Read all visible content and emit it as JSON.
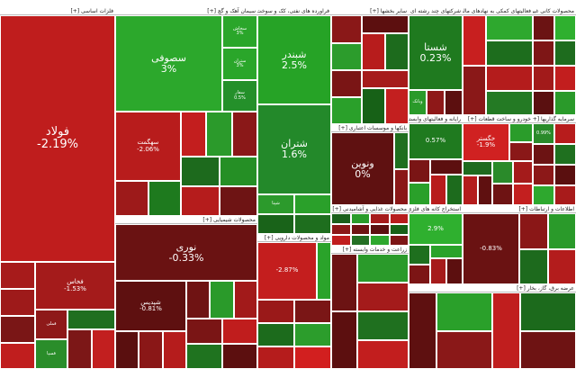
{
  "palette": {
    "strong_up": "#2ea82e",
    "up": "#259a25",
    "mild_up": "#1f7a1f",
    "dark_up": "#155c15",
    "neutral": "#6d1515",
    "mild_down": "#8b1a1a",
    "down": "#b01c1c",
    "strong_down": "#d02020"
  },
  "sectors": [
    {
      "title": "فلزات اساسی [+]",
      "tiles": [
        {
          "symbol": "فولاد",
          "change": "-2.19%",
          "color": "#bf1d1d",
          "big": 3
        },
        {
          "symbol": "",
          "change": "",
          "color": "#a71b1b"
        },
        {
          "symbol": "",
          "change": "",
          "color": "#9e1a1a"
        },
        {
          "symbol": "",
          "change": "",
          "color": "#7a1616"
        },
        {
          "symbol": "",
          "change": "",
          "color": "#c01e1e"
        },
        {
          "symbol": "فخاس",
          "change": "-1.53%",
          "color": "#a41b1b",
          "big": 1
        },
        {
          "symbol": "فملی",
          "change": "",
          "color": "#8e1919"
        },
        {
          "symbol": "فسپا",
          "change": "",
          "color": "#2a8d2a"
        },
        {
          "symbol": "",
          "change": "",
          "color": "#1f6f1f"
        },
        {
          "symbol": "",
          "change": "",
          "color": "#7c1717"
        },
        {
          "symbol": "",
          "change": "",
          "color": "#c21f1f"
        }
      ]
    },
    {
      "title": "سیمان آهک و گچ [+]",
      "tiles": [
        {
          "symbol": "سصوفی",
          "change": "3%",
          "color": "#2ca82c",
          "big": 2
        },
        {
          "symbol": "سخاش",
          "change": "3%",
          "color": "#2aa62a"
        },
        {
          "symbol": "ستران",
          "change": "3%",
          "color": "#2aa62a"
        },
        {
          "symbol": "سفار",
          "change": "0.5%",
          "color": "#24902a"
        },
        {
          "symbol": "سهگمت",
          "change": "-2.06%",
          "color": "#b81c1c",
          "big": 1
        },
        {
          "symbol": "",
          "change": "",
          "color": "#9d1a1a"
        },
        {
          "symbol": "",
          "change": "",
          "color": "#1e7a1e"
        },
        {
          "symbol": "",
          "change": "",
          "color": "#c31e1e"
        },
        {
          "symbol": "",
          "change": "",
          "color": "#2b9a2b"
        },
        {
          "symbol": "",
          "change": "",
          "color": "#8a1818"
        },
        {
          "symbol": "",
          "change": "",
          "color": "#1d6a1d"
        },
        {
          "symbol": "",
          "change": "",
          "color": "#b51c1c"
        },
        {
          "symbol": "",
          "change": "",
          "color": "#258f25"
        },
        {
          "symbol": "",
          "change": "",
          "color": "#6e1414"
        }
      ]
    },
    {
      "title": "فراورده های نفتی، کک و سوخت هسته ای [+]",
      "tiles": [
        {
          "symbol": "شبندر",
          "change": "2.5%",
          "color": "#26a326",
          "big": 2
        },
        {
          "symbol": "شتران",
          "change": "1.6%",
          "color": "#23892a",
          "big": 2
        },
        {
          "symbol": "شپنا",
          "change": "",
          "color": "#2c9a2c"
        },
        {
          "symbol": "",
          "change": "",
          "color": "#196319"
        },
        {
          "symbol": "",
          "change": "",
          "color": "#2aa02a"
        },
        {
          "symbol": "",
          "change": "",
          "color": "#1e6e1e"
        }
      ]
    },
    {
      "title": "محصولات شیمیایی [+]",
      "tiles": [
        {
          "symbol": "نوری",
          "change": "-0.33%",
          "color": "#6a1212",
          "big": 2
        },
        {
          "symbol": "شپدیس",
          "change": "-0.81%",
          "color": "#5e1010",
          "big": 1
        },
        {
          "symbol": "",
          "change": "",
          "color": "#5a0f0f"
        },
        {
          "symbol": "",
          "change": "",
          "color": "#8a1717"
        },
        {
          "symbol": "",
          "change": "",
          "color": "#b51c1c"
        },
        {
          "symbol": "",
          "change": "",
          "color": "#6f1313"
        },
        {
          "symbol": "",
          "change": "",
          "color": "#2a9a2a"
        },
        {
          "symbol": "",
          "change": "",
          "color": "#a21a1a"
        },
        {
          "symbol": "",
          "change": "",
          "color": "#7a1515"
        },
        {
          "symbol": "",
          "change": "",
          "color": "#1f731f"
        },
        {
          "symbol": "",
          "change": "",
          "color": "#c01d1d"
        },
        {
          "symbol": "",
          "change": "",
          "color": "#5c0f0f"
        }
      ]
    },
    {
      "title": "مواد و محصولات دارویی [+]",
      "tiles": [
        {
          "symbol": "",
          "change": "-2.87%",
          "color": "#c41e1e",
          "big": 1
        },
        {
          "symbol": "",
          "change": "",
          "color": "#2aa32a"
        },
        {
          "symbol": "",
          "change": "",
          "color": "#9a1919"
        },
        {
          "symbol": "",
          "change": "",
          "color": "#1c6b1c"
        },
        {
          "symbol": "",
          "change": "",
          "color": "#b51c1c"
        },
        {
          "symbol": "",
          "change": "",
          "color": "#7a1616"
        },
        {
          "symbol": "",
          "change": "",
          "color": "#2c9d2c"
        },
        {
          "symbol": "",
          "change": "",
          "color": "#d21f1f"
        }
      ]
    },
    {
      "title": "محصولات کانی غیرفلزی [+]",
      "tiles": [
        {
          "symbol": "",
          "change": "",
          "color": "#6b1313"
        },
        {
          "symbol": "",
          "change": "",
          "color": "#2fb02f"
        },
        {
          "symbol": "",
          "change": "",
          "color": "#7e1616"
        },
        {
          "symbol": "",
          "change": "",
          "color": "#1e6c1e"
        },
        {
          "symbol": "",
          "change": "",
          "color": "#a21a1a"
        },
        {
          "symbol": "",
          "change": "",
          "color": "#c21e1e"
        },
        {
          "symbol": "",
          "change": "",
          "color": "#5a1010"
        },
        {
          "symbol": "",
          "change": "",
          "color": "#2a9a2a"
        }
      ]
    },
    {
      "title": "فعالیتهای کمکی به نهادهای مالی واسط [+]",
      "tiles": [
        {
          "symbol": "",
          "change": "",
          "color": "#c81f1f"
        },
        {
          "symbol": "",
          "change": "",
          "color": "#2ea82e"
        },
        {
          "symbol": "",
          "change": "",
          "color": "#1d6d1d"
        },
        {
          "symbol": "",
          "change": "",
          "color": "#8a1818"
        },
        {
          "symbol": "",
          "change": "",
          "color": "#b41c1c"
        },
        {
          "symbol": "",
          "change": "",
          "color": "#247a24"
        }
      ]
    },
    {
      "title": "بانکها و موسسات اعتباری [+]",
      "tiles": [
        {
          "symbol": "ونوین",
          "change": "0%",
          "color": "#5f1111",
          "big": 2
        },
        {
          "symbol": "",
          "change": "",
          "color": "#1f6f1f"
        },
        {
          "symbol": "",
          "change": "",
          "color": "#8a1717"
        }
      ]
    },
    {
      "title": "محصولات غذایی و آشامیدنی [+]",
      "tiles": [
        {
          "symbol": "",
          "change": "",
          "color": "#1b5f1b"
        },
        {
          "symbol": "",
          "change": "",
          "color": "#8c1818"
        },
        {
          "symbol": "",
          "change": "",
          "color": "#c01e1e"
        },
        {
          "symbol": "",
          "change": "",
          "color": "#2a9c2a"
        },
        {
          "symbol": "",
          "change": "",
          "color": "#6e1313"
        },
        {
          "symbol": "",
          "change": "",
          "color": "#246f24"
        },
        {
          "symbol": "",
          "change": "",
          "color": "#a61b1b"
        },
        {
          "symbol": "",
          "change": "",
          "color": "#5c0f0f"
        },
        {
          "symbol": "",
          "change": "",
          "color": "#2ea82e"
        },
        {
          "symbol": "",
          "change": "",
          "color": "#b71c1c"
        },
        {
          "symbol": "",
          "change": "",
          "color": "#176117"
        },
        {
          "symbol": "",
          "change": "",
          "color": "#7d1616"
        }
      ]
    },
    {
      "title": "شرکتهای چند رشته ای صنعتی [+]",
      "tiles": [
        {
          "symbol": "شستا",
          "change": "0.23%",
          "color": "#1f7a1f",
          "big": 2
        },
        {
          "symbol": "وبانک",
          "change": "",
          "color": "#2a9a2a"
        },
        {
          "symbol": "",
          "change": "",
          "color": "#8e1818"
        },
        {
          "symbol": "",
          "change": "",
          "color": "#5c0f0f"
        }
      ]
    },
    {
      "title": "خودرو و ساخت قطعات [+]",
      "tiles": [
        {
          "symbol": "خگستر",
          "change": "-1.9%",
          "color": "#d02121",
          "big": 1
        },
        {
          "symbol": "",
          "change": "",
          "color": "#2a9c2a"
        },
        {
          "symbol": "",
          "change": "",
          "color": "#8a1818"
        },
        {
          "symbol": "",
          "change": "",
          "color": "#1e6a1e"
        },
        {
          "symbol": "",
          "change": "",
          "color": "#b41c1c"
        },
        {
          "symbol": "",
          "change": "",
          "color": "#5f1010"
        },
        {
          "symbol": "",
          "change": "",
          "color": "#2a8a2a"
        },
        {
          "symbol": "",
          "change": "",
          "color": "#a41b1b"
        },
        {
          "symbol": "",
          "change": "",
          "color": "#6e1313"
        },
        {
          "symbol": "",
          "change": "",
          "color": "#c31f1f"
        }
      ]
    },
    {
      "title": "سرمایه گذاریها [+]",
      "tiles": [
        {
          "symbol": "",
          "change": "0.99%",
          "color": "#2a8a2a"
        },
        {
          "symbol": "",
          "change": "",
          "color": "#6c1313"
        },
        {
          "symbol": "",
          "change": "",
          "color": "#b71c1c"
        },
        {
          "symbol": "",
          "change": "",
          "color": "#1f701f"
        },
        {
          "symbol": "",
          "change": "",
          "color": "#8c1818"
        },
        {
          "symbol": "",
          "change": "",
          "color": "#2ea82e"
        },
        {
          "symbol": "",
          "change": "",
          "color": "#5a0f0f"
        },
        {
          "symbol": "",
          "change": "",
          "color": "#a81b1b"
        }
      ]
    },
    {
      "title": "رایانه و فعالیتهای وابسته به آن [+]",
      "tiles": [
        {
          "symbol": "",
          "change": "0.57%",
          "color": "#1f7a1f",
          "big": 1
        },
        {
          "symbol": "",
          "change": "",
          "color": "#7a1515"
        },
        {
          "symbol": "",
          "change": "",
          "color": "#2aa02a"
        },
        {
          "symbol": "",
          "change": "",
          "color": "#5c0f0f"
        },
        {
          "symbol": "",
          "change": "",
          "color": "#b81c1c"
        },
        {
          "symbol": "",
          "change": "",
          "color": "#1d6b1d"
        }
      ]
    },
    {
      "title": "استخراج کانه های فلزی [+]",
      "tiles": [
        {
          "symbol": "",
          "change": "2.9%",
          "color": "#2fb02f",
          "big": 1
        },
        {
          "symbol": "",
          "change": "",
          "color": "#1e6f1e"
        },
        {
          "symbol": "",
          "change": "",
          "color": "#7c1515"
        },
        {
          "symbol": "",
          "change": "",
          "color": "#2aa32a"
        },
        {
          "symbol": "",
          "change": "",
          "color": "#a61b1b"
        },
        {
          "symbol": "",
          "change": "",
          "color": "#5c0f0f"
        }
      ]
    },
    {
      "title": "اطلاعات و ارتباطات [+]",
      "tiles": [
        {
          "symbol": "",
          "change": "-0.83%",
          "color": "#6a1212",
          "big": 1
        },
        {
          "symbol": "",
          "change": "",
          "color": "#8a1717"
        },
        {
          "symbol": "",
          "change": "",
          "color": "#2a9a2a"
        },
        {
          "symbol": "",
          "change": "",
          "color": "#1d6a1d"
        },
        {
          "symbol": "",
          "change": "",
          "color": "#b31c1c"
        }
      ]
    },
    {
      "title": "عرضه برق، گاز، بخار [+]",
      "tiles": [
        {
          "symbol": "",
          "change": "",
          "color": "#5e1010"
        },
        {
          "symbol": "",
          "change": "",
          "color": "#2aa02a"
        },
        {
          "symbol": "",
          "change": "",
          "color": "#8a1818"
        },
        {
          "symbol": "",
          "change": "",
          "color": "#c01e1e"
        },
        {
          "symbol": "",
          "change": "",
          "color": "#1c6a1c"
        },
        {
          "symbol": "",
          "change": "",
          "color": "#6e1313"
        }
      ]
    },
    {
      "title": "زراعت و خدمات وابسته [+]",
      "tiles": [
        {
          "symbol": "",
          "change": "",
          "color": "#6c1313"
        },
        {
          "symbol": "",
          "change": "",
          "color": "#2a9a2a"
        },
        {
          "symbol": "",
          "change": "",
          "color": "#a41b1b"
        },
        {
          "symbol": "",
          "change": "",
          "color": "#5c0f0f"
        },
        {
          "symbol": "",
          "change": "",
          "color": "#1f701f"
        },
        {
          "symbol": "",
          "change": "",
          "color": "#c21e1e"
        }
      ]
    },
    {
      "title": "سایر بخشها [+]",
      "tiles": [
        {
          "symbol": "",
          "change": "",
          "color": "#8a1818"
        },
        {
          "symbol": "",
          "change": "",
          "color": "#2c9c2c"
        },
        {
          "symbol": "",
          "change": "",
          "color": "#5c0f0f"
        },
        {
          "symbol": "",
          "change": "",
          "color": "#b71c1c"
        },
        {
          "symbol": "",
          "change": "",
          "color": "#1d6b1d"
        },
        {
          "symbol": "",
          "change": "",
          "color": "#7a1515"
        },
        {
          "symbol": "",
          "change": "",
          "color": "#2aa02a"
        },
        {
          "symbol": "",
          "change": "",
          "color": "#a61b1b"
        },
        {
          "symbol": "",
          "change": "",
          "color": "#176117"
        },
        {
          "symbol": "",
          "change": "",
          "color": "#c31f1f"
        }
      ]
    }
  ]
}
